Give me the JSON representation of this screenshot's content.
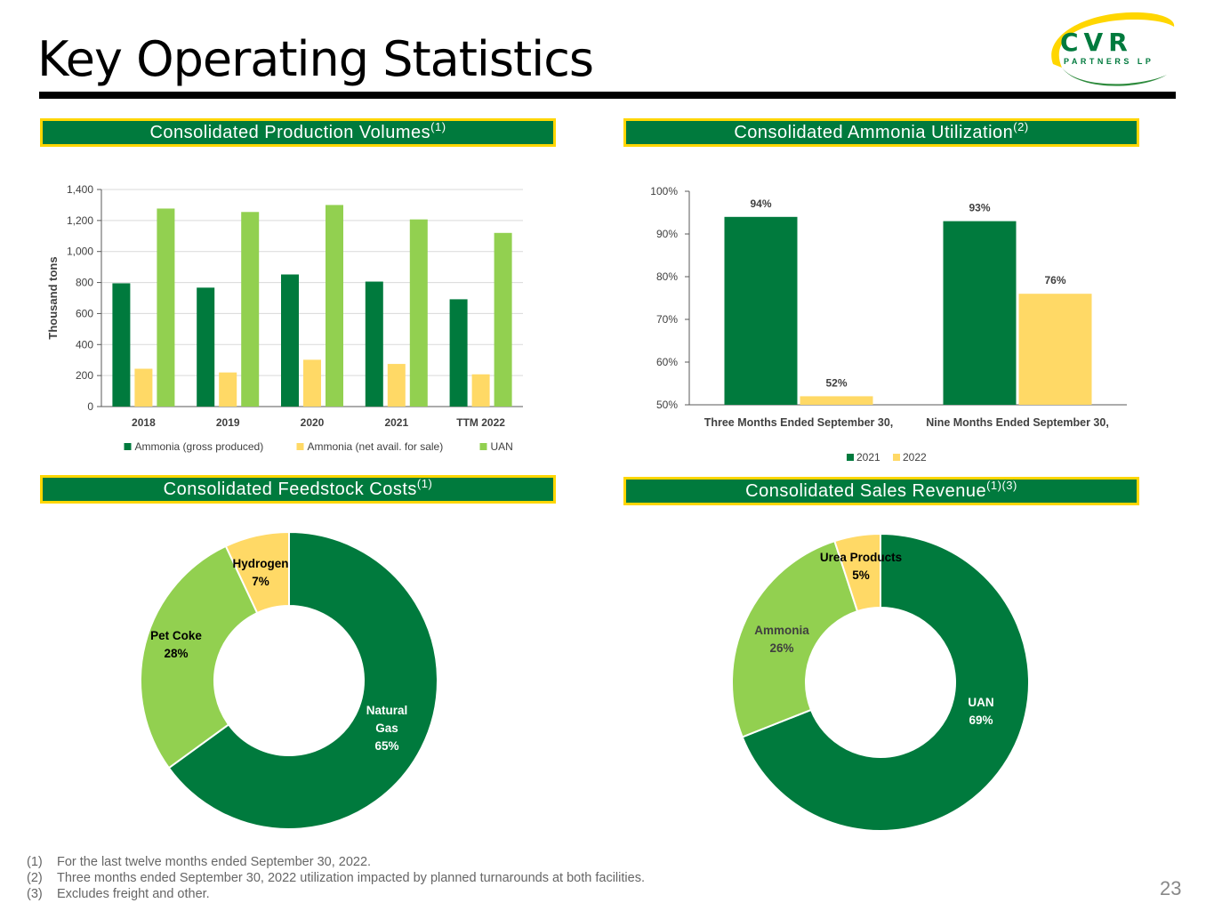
{
  "page": {
    "title": "Key Operating Statistics",
    "page_number": "23",
    "logo": {
      "name": "CVR",
      "sub": "PARTNERS LP"
    }
  },
  "panels": {
    "production": {
      "title": "Consolidated Production Volumes",
      "sup": "(1)"
    },
    "utilization": {
      "title": "Consolidated Ammonia Utilization",
      "sup": "(2)"
    },
    "feedstock": {
      "title": "Consolidated Feedstock Costs",
      "sup": "(1)"
    },
    "revenue": {
      "title": "Consolidated Sales Revenue",
      "sup": "(1)(3)"
    }
  },
  "colors": {
    "dark_green": "#007a3d",
    "light_green": "#92d050",
    "yellow": "#ffd966",
    "header_border": "#ffd600"
  },
  "chart_data": [
    {
      "type": "bar",
      "id": "production",
      "categories": [
        "2018",
        "2019",
        "2020",
        "2021",
        "TTM 2022"
      ],
      "series": [
        {
          "name": "Ammonia (gross produced)",
          "values": [
            795,
            767,
            852,
            806,
            692
          ]
        },
        {
          "name": "Ammonia (net avail. for sale)",
          "values": [
            244,
            220,
            302,
            275,
            208
          ]
        },
        {
          "name": "UAN",
          "values": [
            1277,
            1255,
            1300,
            1207,
            1120
          ]
        }
      ],
      "ylabel": "Thousand tons",
      "ylim": [
        0,
        1400
      ],
      "yticks": [
        "0",
        "200",
        "400",
        "600",
        "800",
        "1,000",
        "1,200",
        "1,400"
      ],
      "legend": "bottom"
    },
    {
      "type": "bar",
      "id": "utilization",
      "categories": [
        "Three Months Ended September 30,",
        "Nine Months Ended September 30,"
      ],
      "series": [
        {
          "name": "2021",
          "values": [
            94,
            93
          ],
          "labels": [
            "94%",
            "93%"
          ]
        },
        {
          "name": "2022",
          "values": [
            52,
            76
          ],
          "labels": [
            "52%",
            "76%"
          ]
        }
      ],
      "ylim": [
        50,
        100
      ],
      "yticks": [
        "50%",
        "60%",
        "70%",
        "80%",
        "90%",
        "100%"
      ],
      "legend": "bottom"
    },
    {
      "type": "pie",
      "id": "feedstock",
      "slices": [
        {
          "label": "Natural Gas",
          "value": 65,
          "text": "65%"
        },
        {
          "label": "Pet Coke",
          "value": 28,
          "text": "28%"
        },
        {
          "label": "Hydrogen",
          "value": 7,
          "text": "7%"
        }
      ]
    },
    {
      "type": "pie",
      "id": "revenue",
      "slices": [
        {
          "label": "UAN",
          "value": 69,
          "text": "69%"
        },
        {
          "label": "Ammonia",
          "value": 26,
          "text": "26%"
        },
        {
          "label": "Urea Products",
          "value": 5,
          "text": "5%"
        }
      ]
    }
  ],
  "footnotes": [
    {
      "num": "(1)",
      "text": "For the last twelve months ended September 30, 2022."
    },
    {
      "num": "(2)",
      "text": "Three months ended September 30, 2022 utilization impacted by planned turnarounds at both facilities."
    },
    {
      "num": "(3)",
      "text": "Excludes freight and other."
    }
  ]
}
